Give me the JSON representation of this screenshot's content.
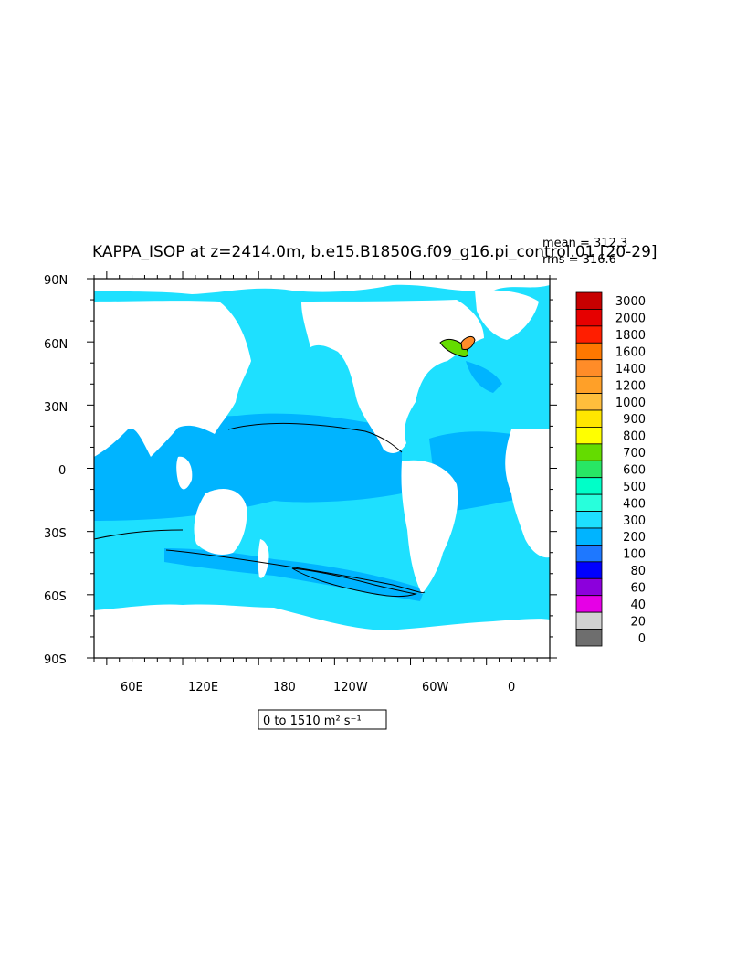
{
  "figure": {
    "title": "KAPPA_ISOP at z=2414.0m, b.e15.B1850G.f09_g16.pi_control.01 [20-29]",
    "stats": {
      "mean": "mean = 312.3",
      "rms": "rms = 316.6"
    },
    "range_label": "0 to 1510 m² s⁻¹"
  },
  "map": {
    "lat_ticks": [
      "90N",
      "60N",
      "30N",
      "0",
      "30S",
      "60S",
      "90S"
    ],
    "lon_ticks": [
      "60E",
      "120E",
      "180",
      "120W",
      "60W",
      "0"
    ],
    "ocean_base_color": "#1ee0ff",
    "band_color": "#00b4ff",
    "land_color": "#ffffff",
    "contour_color": "#000000"
  },
  "colorbar": {
    "levels": [
      "3000",
      "2000",
      "1800",
      "1600",
      "1400",
      "1200",
      "1000",
      "900",
      "800",
      "700",
      "600",
      "500",
      "400",
      "300",
      "200",
      "100",
      "80",
      "60",
      "40",
      "20",
      "0"
    ],
    "colors": [
      "#c80000",
      "#e60000",
      "#ff1e00",
      "#ff7800",
      "#ff8c28",
      "#ffa028",
      "#ffbe3c",
      "#ffe600",
      "#ffff00",
      "#64dc00",
      "#28e664",
      "#00ffc8",
      "#28ffdc",
      "#1ee0ff",
      "#00b4ff",
      "#1e78ff",
      "#0000ff",
      "#8c00dc",
      "#e600e6",
      "#d2d2d2",
      "#6e6e6e"
    ]
  }
}
